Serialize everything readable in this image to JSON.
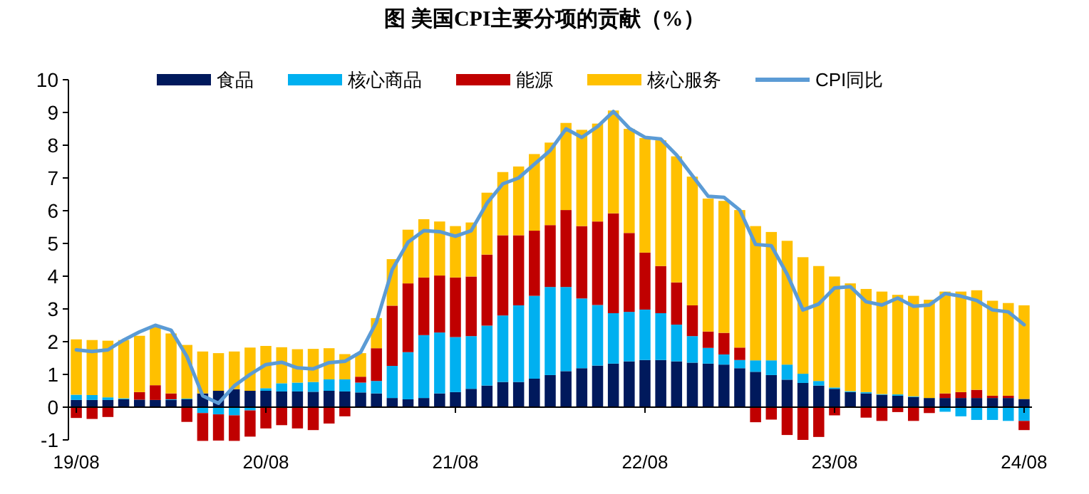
{
  "chart_data": {
    "type": "bar",
    "title": "图  美国CPI主要分项的贡献（%）",
    "stacked": true,
    "legend": "top",
    "grid": false,
    "marker": "none",
    "line_style": "solid",
    "categories": [
      "19/08",
      null,
      null,
      null,
      null,
      null,
      null,
      null,
      null,
      null,
      null,
      null,
      "20/08",
      null,
      null,
      null,
      null,
      null,
      null,
      null,
      null,
      null,
      null,
      null,
      "21/08",
      null,
      null,
      null,
      null,
      null,
      null,
      null,
      null,
      null,
      null,
      null,
      "22/08",
      null,
      null,
      null,
      null,
      null,
      null,
      null,
      null,
      null,
      null,
      null,
      "23/08",
      null,
      null,
      null,
      null,
      null,
      null,
      null,
      null,
      null,
      null,
      null,
      "24/08"
    ],
    "ylim": [
      -1,
      10
    ],
    "yticks": [
      -1,
      0,
      1,
      2,
      3,
      4,
      5,
      6,
      7,
      8,
      9,
      10
    ],
    "series": [
      {
        "name": "食品",
        "color": "#00195c",
        "values": [
          0.22,
          0.22,
          0.22,
          0.24,
          0.23,
          0.22,
          0.22,
          0.24,
          0.42,
          0.5,
          0.55,
          0.5,
          0.5,
          0.48,
          0.48,
          0.47,
          0.5,
          0.48,
          0.45,
          0.42,
          0.28,
          0.24,
          0.28,
          0.42,
          0.46,
          0.56,
          0.66,
          0.77,
          0.77,
          0.87,
          0.98,
          1.1,
          1.19,
          1.27,
          1.33,
          1.4,
          1.44,
          1.44,
          1.4,
          1.36,
          1.33,
          1.3,
          1.19,
          1.08,
          0.98,
          0.84,
          0.74,
          0.66,
          0.56,
          0.46,
          0.42,
          0.38,
          0.35,
          0.31,
          0.28,
          0.28,
          0.28,
          0.28,
          0.28,
          0.28,
          0.25
        ]
      },
      {
        "name": "核心商品",
        "color": "#00b0f0",
        "values": [
          0.16,
          0.15,
          0.08,
          0.03,
          null,
          null,
          0.02,
          0.02,
          -0.18,
          -0.22,
          -0.25,
          -0.1,
          0.08,
          0.25,
          0.27,
          0.3,
          0.35,
          0.37,
          0.3,
          0.38,
          0.98,
          1.44,
          1.92,
          1.86,
          1.68,
          1.61,
          1.83,
          2.03,
          2.34,
          2.53,
          2.69,
          2.57,
          2.13,
          1.85,
          1.54,
          1.51,
          1.54,
          1.43,
          1.12,
          0.81,
          0.48,
          0.31,
          0.25,
          0.35,
          0.45,
          0.46,
          0.28,
          0.14,
          0.04,
          0.03,
          0.04,
          0.02,
          0.04,
          0.02,
          null,
          -0.14,
          -0.28,
          -0.39,
          -0.39,
          -0.42,
          -0.42
        ]
      },
      {
        "name": "能源",
        "color": "#c00000",
        "values": [
          -0.33,
          -0.36,
          -0.3,
          null,
          0.23,
          0.45,
          0.18,
          -0.45,
          -0.85,
          -0.8,
          -0.78,
          -0.8,
          -0.65,
          -0.55,
          -0.65,
          -0.7,
          -0.5,
          -0.28,
          0.18,
          1.0,
          1.84,
          2.1,
          1.76,
          1.74,
          1.82,
          1.82,
          2.17,
          2.45,
          2.14,
          1.99,
          1.89,
          2.35,
          2.21,
          2.55,
          3.05,
          2.41,
          1.74,
          1.44,
          1.29,
          0.94,
          0.5,
          0.66,
          0.38,
          -0.46,
          -0.38,
          -0.85,
          -1.0,
          -0.91,
          -0.25,
          null,
          -0.32,
          -0.42,
          -0.15,
          -0.42,
          -0.18,
          0.14,
          0.18,
          0.25,
          0.07,
          0.07,
          -0.28
        ]
      },
      {
        "name": "核心服务",
        "color": "#ffc000",
        "values": [
          1.69,
          1.68,
          1.73,
          1.78,
          1.72,
          1.78,
          1.83,
          1.64,
          1.28,
          1.15,
          1.15,
          1.32,
          1.29,
          1.1,
          1.02,
          1.01,
          0.95,
          0.77,
          0.72,
          0.92,
          1.42,
          1.64,
          1.78,
          1.65,
          1.57,
          1.65,
          1.89,
          1.93,
          2.1,
          2.34,
          2.52,
          2.66,
          2.94,
          2.99,
          3.14,
          3.18,
          3.5,
          3.84,
          3.85,
          3.93,
          4.06,
          4.03,
          4.2,
          4.1,
          3.92,
          3.78,
          3.56,
          3.51,
          3.39,
          3.29,
          3.15,
          3.13,
          3.04,
          3.07,
          3.0,
          3.11,
          3.07,
          3.04,
          2.9,
          2.83,
          2.86
        ]
      },
      {
        "name": "CPI同比",
        "type": "line",
        "color": "#5b9bd5",
        "values": [
          1.75,
          1.7,
          1.75,
          2.05,
          2.3,
          2.5,
          2.35,
          1.55,
          0.35,
          0.12,
          0.65,
          1.0,
          1.3,
          1.37,
          1.2,
          1.17,
          1.36,
          1.4,
          1.68,
          2.6,
          4.2,
          5.04,
          5.39,
          5.36,
          5.22,
          5.39,
          6.23,
          6.82,
          7.0,
          7.42,
          7.84,
          8.5,
          8.24,
          8.57,
          9.03,
          8.52,
          8.24,
          8.19,
          7.7,
          7.07,
          6.44,
          6.41,
          6.02,
          4.97,
          4.93,
          4.06,
          2.97,
          3.15,
          3.64,
          3.68,
          3.22,
          3.12,
          3.33,
          3.08,
          3.12,
          3.47,
          3.39,
          3.26,
          2.97,
          2.91,
          2.52
        ]
      }
    ]
  }
}
